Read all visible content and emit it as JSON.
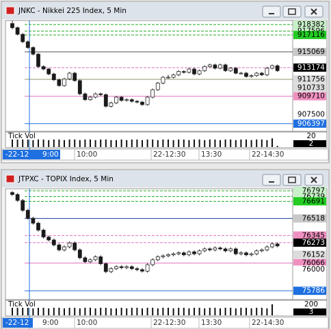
{
  "windows": [
    {
      "title": "JNKC - Nikkei 225 Index, 5 Min",
      "ylim": [
        905633,
        918700
      ],
      "up_color": "#ffffff",
      "down_color": "#1a1a1a",
      "levels": [
        {
          "value": 918382,
          "bg": "#c8f0c8",
          "fg": "#000000",
          "line": "#22aa22",
          "dash": true
        },
        {
          "value": 917596,
          "bg": "#c8f0c8",
          "fg": "#000000",
          "line": "#22aa22",
          "dash": true
        },
        {
          "value": 917116,
          "bg": "#22cc22",
          "fg": "#000000",
          "line": "#22aa22",
          "dash": true
        },
        {
          "value": 915069,
          "bg": "#c8c8c8",
          "fg": "#000000",
          "line": "#555555"
        },
        {
          "value": 913174,
          "bg": "#000000",
          "fg": "#ffffff",
          "line": "#e070c0",
          "dash": true
        },
        {
          "value": 911756,
          "bg": "#dcdcdc",
          "fg": "#000000",
          "line": "#8a9a6a"
        },
        {
          "value": 910733,
          "bg": "#dcdcdc",
          "fg": "#000000"
        },
        {
          "value": 909710,
          "bg": "#f090c0",
          "fg": "#000000",
          "line": "#e070c0"
        },
        {
          "value": 907500,
          "bg": "#ffffff",
          "fg": "#000000"
        },
        {
          "value": 906397,
          "bg": "#1e6fe0",
          "fg": "#ffffff",
          "line": "#1e6fe0"
        }
      ],
      "candles": [
        [
          918500,
          918800,
          917800,
          918000
        ],
        [
          918000,
          918150,
          917050,
          917200
        ],
        [
          917200,
          917350,
          916150,
          916300
        ],
        [
          916300,
          916450,
          915450,
          915600
        ],
        [
          915600,
          915750,
          914650,
          914800
        ],
        [
          914800,
          914950,
          913150,
          913300
        ],
        [
          913300,
          913450,
          912850,
          913000
        ],
        [
          913000,
          913150,
          912250,
          912400
        ],
        [
          912400,
          912550,
          911550,
          911700
        ],
        [
          911700,
          911850,
          910850,
          911000
        ],
        [
          911000,
          911950,
          910850,
          911800
        ],
        [
          911800,
          912650,
          911650,
          912500
        ],
        [
          912500,
          912650,
          911450,
          911600
        ],
        [
          911600,
          911750,
          909850,
          910000
        ],
        [
          910000,
          910150,
          909150,
          909300
        ],
        [
          909300,
          909750,
          909150,
          909600
        ],
        [
          909600,
          910150,
          909450,
          910000
        ],
        [
          910000,
          910150,
          909750,
          909900
        ],
        [
          909900,
          910050,
          908350,
          908500
        ],
        [
          908500,
          909050,
          908350,
          908900
        ],
        [
          908900,
          909750,
          908750,
          909600
        ],
        [
          909600,
          909750,
          909050,
          909200
        ],
        [
          909200,
          909450,
          909050,
          909300
        ],
        [
          909300,
          909450,
          908950,
          909100
        ],
        [
          909100,
          909250,
          908850,
          909000
        ],
        [
          909000,
          909150,
          908550,
          908700
        ],
        [
          908700,
          909750,
          908550,
          909600
        ],
        [
          909600,
          910650,
          909450,
          910500
        ],
        [
          910500,
          911450,
          910350,
          911300
        ],
        [
          911300,
          912150,
          911150,
          912000
        ],
        [
          912000,
          912300,
          911850,
          912000
        ],
        [
          912000,
          912450,
          911850,
          912300
        ],
        [
          912300,
          912850,
          912150,
          912700
        ],
        [
          912700,
          912850,
          912450,
          912600
        ],
        [
          912600,
          913150,
          912450,
          913000
        ],
        [
          913000,
          913150,
          912250,
          912400
        ],
        [
          912400,
          912950,
          912250,
          912800
        ],
        [
          912800,
          913450,
          912650,
          913300
        ],
        [
          913300,
          913650,
          913150,
          913500
        ],
        [
          913500,
          913650,
          912950,
          913100
        ],
        [
          913100,
          913650,
          912950,
          913500
        ],
        [
          913500,
          913650,
          912650,
          912800
        ],
        [
          912800,
          913250,
          912650,
          913100
        ],
        [
          913100,
          913250,
          912350,
          912500
        ],
        [
          912500,
          912650,
          912350,
          912500
        ],
        [
          912500,
          912650,
          911950,
          912100
        ],
        [
          912100,
          912350,
          911950,
          912200
        ],
        [
          912200,
          912650,
          912050,
          912500
        ],
        [
          912500,
          912650,
          912150,
          912300
        ],
        [
          912300,
          913250,
          912150,
          913100
        ],
        [
          913100,
          913550,
          912950,
          913400
        ],
        [
          913400,
          913550,
          912650,
          912800
        ]
      ],
      "volume_label": "Tick Vol",
      "volume_max": 20,
      "volume_last": 2,
      "volumes": [
        16,
        14,
        13,
        13,
        12,
        13,
        13,
        12,
        13,
        13,
        12,
        13,
        13,
        12,
        13,
        13,
        12,
        13,
        13,
        12,
        12,
        13,
        12,
        13,
        13,
        12,
        13,
        13,
        12,
        13,
        13,
        12,
        13,
        13,
        12,
        13,
        13,
        12,
        13,
        13,
        12,
        13,
        13,
        12,
        13,
        13,
        12,
        13,
        13,
        12,
        15,
        2
      ],
      "time_labels": [
        "-22-12",
        "9:00",
        "10:00",
        "22-12:30",
        "13:30",
        "22-14:30"
      ]
    },
    {
      "title": "JTPXC - TOPIX Index, 5 Min",
      "ylim": [
        75711,
        76804
      ],
      "up_color": "#ffffff",
      "down_color": "#1a1a1a",
      "levels": [
        {
          "value": 76797,
          "bg": "#c8f0c8",
          "fg": "#000000",
          "line": "#22aa22",
          "dash": true
        },
        {
          "value": 76739,
          "bg": "#c8f0c8",
          "fg": "#000000",
          "line": "#22aa22",
          "dash": true
        },
        {
          "value": 76691,
          "bg": "#22cc22",
          "fg": "#000000",
          "line": "#22aa22",
          "dash": true
        },
        {
          "value": 76518,
          "bg": "#c8c8c8",
          "fg": "#000000",
          "line": "#1e3f9e"
        },
        {
          "value": 76345,
          "bg": "#f090c0",
          "fg": "#000000",
          "line": "#e070c0",
          "dash": true
        },
        {
          "value": 76273,
          "bg": "#000000",
          "fg": "#ffffff",
          "line": "#e070c0",
          "dash": true
        },
        {
          "value": 76152,
          "bg": "#dcdcdc",
          "fg": "#000000"
        },
        {
          "value": 76066,
          "bg": "#f090c0",
          "fg": "#000000",
          "line": "#e070c0"
        },
        {
          "value": 76000,
          "bg": "#ffffff",
          "fg": "#000000"
        },
        {
          "value": 75786,
          "bg": "#1e6fe0",
          "fg": "#ffffff",
          "line": "#1e6fe0"
        }
      ],
      "candles": [
        [
          76780,
          76795,
          76745,
          76760
        ],
        [
          76760,
          76775,
          76685,
          76700
        ],
        [
          76700,
          76715,
          76585,
          76600
        ],
        [
          76600,
          76615,
          76505,
          76520
        ],
        [
          76520,
          76535,
          76455,
          76470
        ],
        [
          76470,
          76485,
          76385,
          76400
        ],
        [
          76400,
          76415,
          76315,
          76330
        ],
        [
          76330,
          76345,
          76285,
          76300
        ],
        [
          76300,
          76315,
          76235,
          76250
        ],
        [
          76250,
          76265,
          76185,
          76200
        ],
        [
          76200,
          76245,
          76185,
          76230
        ],
        [
          76230,
          76285,
          76215,
          76270
        ],
        [
          76270,
          76285,
          76185,
          76200
        ],
        [
          76200,
          76215,
          76105,
          76120
        ],
        [
          76120,
          76135,
          76065,
          76080
        ],
        [
          76080,
          76115,
          76065,
          76100
        ],
        [
          76100,
          76145,
          76085,
          76130
        ],
        [
          76130,
          76145,
          76045,
          76060
        ],
        [
          76060,
          76075,
          75965,
          75980
        ],
        [
          75980,
          76025,
          75965,
          76010
        ],
        [
          76010,
          76045,
          75995,
          76030
        ],
        [
          76030,
          76045,
          76005,
          76020
        ],
        [
          76020,
          76045,
          76005,
          76030
        ],
        [
          76030,
          76045,
          75995,
          76010
        ],
        [
          76010,
          76025,
          75985,
          76000
        ],
        [
          76000,
          76015,
          75970,
          75985
        ],
        [
          75985,
          76065,
          75970,
          76050
        ],
        [
          76050,
          76115,
          76035,
          76100
        ],
        [
          76100,
          76145,
          76085,
          76130
        ],
        [
          76130,
          76155,
          76115,
          76140
        ],
        [
          76140,
          76165,
          76125,
          76150
        ],
        [
          76150,
          76175,
          76135,
          76160
        ],
        [
          76160,
          76185,
          76145,
          76170
        ],
        [
          76170,
          76185,
          76135,
          76150
        ],
        [
          76150,
          76195,
          76135,
          76180
        ],
        [
          76180,
          76195,
          76145,
          76160
        ],
        [
          76160,
          76205,
          76145,
          76190
        ],
        [
          76190,
          76225,
          76175,
          76210
        ],
        [
          76210,
          76225,
          76185,
          76200
        ],
        [
          76200,
          76235,
          76185,
          76220
        ],
        [
          76220,
          76235,
          76195,
          76210
        ],
        [
          76210,
          76225,
          76175,
          76190
        ],
        [
          76190,
          76225,
          76175,
          76210
        ],
        [
          76210,
          76225,
          76145,
          76160
        ],
        [
          76160,
          76185,
          76145,
          76170
        ],
        [
          76170,
          76185,
          76135,
          76150
        ],
        [
          76150,
          76175,
          76135,
          76160
        ],
        [
          76160,
          76205,
          76145,
          76190
        ],
        [
          76190,
          76215,
          76175,
          76200
        ],
        [
          76200,
          76245,
          76185,
          76230
        ],
        [
          76230,
          76275,
          76215,
          76260
        ],
        [
          76260,
          76275,
          76225,
          76240
        ]
      ],
      "volume_label": "Tick Vol",
      "volume_max": 200,
      "volume_last": 3,
      "volumes": [
        170,
        150,
        130,
        130,
        120,
        130,
        130,
        120,
        130,
        130,
        120,
        130,
        130,
        120,
        130,
        130,
        120,
        130,
        130,
        120,
        120,
        130,
        120,
        130,
        130,
        120,
        130,
        130,
        120,
        130,
        130,
        120,
        130,
        130,
        120,
        130,
        130,
        120,
        130,
        130,
        120,
        130,
        130,
        120,
        130,
        130,
        120,
        130,
        130,
        120,
        190,
        3
      ],
      "time_labels": [
        "-22-12",
        "9:00",
        "10:00",
        "22-12:30",
        "13:30",
        "22-14:30"
      ]
    }
  ]
}
